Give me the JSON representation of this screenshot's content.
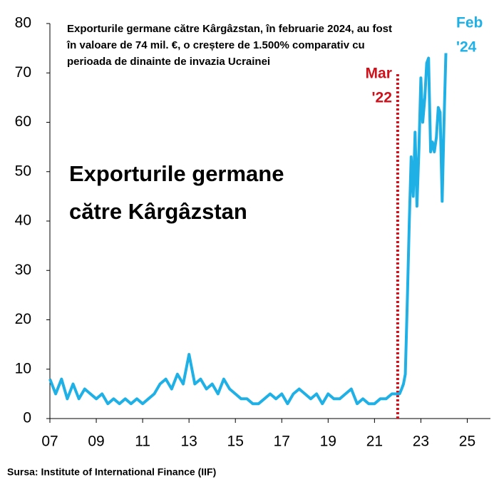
{
  "chart_data": {
    "type": "line",
    "annotation_lines": [
      "Exporturile germane către Kârgâzstan, în februarie 2024, au fost",
      "în valoare de 74 mil. €, o creștere de 1.500% comparativ cu",
      "perioada de dinainte de invazia Ucrainei"
    ],
    "title_lines": [
      "Exporturile germane",
      "către Kârgâzstan"
    ],
    "source": "Sursa: Institute of International Finance (IIF)",
    "marker": {
      "x": 22,
      "top": 70,
      "label_lines": [
        "Mar",
        "'22"
      ],
      "color": "#d0101a"
    },
    "end_label_lines": [
      "Feb",
      "'24"
    ],
    "xlim": [
      7,
      26
    ],
    "ylim": [
      0,
      80
    ],
    "xticks": [
      {
        "value": 7,
        "label": "07"
      },
      {
        "value": 9,
        "label": "09"
      },
      11,
      13,
      15,
      17,
      19,
      21,
      23,
      25
    ],
    "yticks": [
      0,
      10,
      20,
      30,
      40,
      50,
      60,
      70,
      80
    ],
    "series": [
      {
        "color": "#1fb0e6",
        "x": [
          7.0,
          7.25,
          7.5,
          7.75,
          8.0,
          8.25,
          8.5,
          8.75,
          9.0,
          9.25,
          9.5,
          9.75,
          10.0,
          10.25,
          10.5,
          10.75,
          11.0,
          11.25,
          11.5,
          11.75,
          12.0,
          12.25,
          12.5,
          12.75,
          13.0,
          13.25,
          13.5,
          13.75,
          14.0,
          14.25,
          14.5,
          14.75,
          15.0,
          15.25,
          15.5,
          15.75,
          16.0,
          16.25,
          16.5,
          16.75,
          17.0,
          17.25,
          17.5,
          17.75,
          18.0,
          18.25,
          18.5,
          18.75,
          19.0,
          19.25,
          19.5,
          19.75,
          20.0,
          20.25,
          20.5,
          20.75,
          21.0,
          21.25,
          21.5,
          21.75,
          22.0,
          22.08,
          22.17,
          22.25,
          22.33,
          22.42,
          22.5,
          22.58,
          22.67,
          22.75,
          22.83,
          22.92,
          23.0,
          23.08,
          23.17,
          23.25,
          23.33,
          23.42,
          23.5,
          23.58,
          23.67,
          23.75,
          23.83,
          23.92,
          24.0,
          24.08
        ],
        "values": [
          8,
          5,
          8,
          4,
          7,
          4,
          6,
          5,
          4,
          5,
          3,
          4,
          3,
          4,
          3,
          4,
          3,
          4,
          5,
          7,
          8,
          6,
          9,
          7,
          13,
          7,
          8,
          6,
          7,
          5,
          8,
          6,
          5,
          4,
          4,
          3,
          3,
          4,
          5,
          4,
          5,
          3,
          5,
          6,
          5,
          4,
          5,
          3,
          5,
          4,
          4,
          5,
          6,
          3,
          4,
          3,
          3,
          4,
          4,
          5,
          5,
          5,
          6,
          7,
          9,
          25,
          40,
          53,
          45,
          58,
          43,
          55,
          69,
          60,
          65,
          72,
          73,
          54,
          56,
          54,
          57,
          63,
          62,
          44,
          60,
          74
        ]
      }
    ]
  }
}
